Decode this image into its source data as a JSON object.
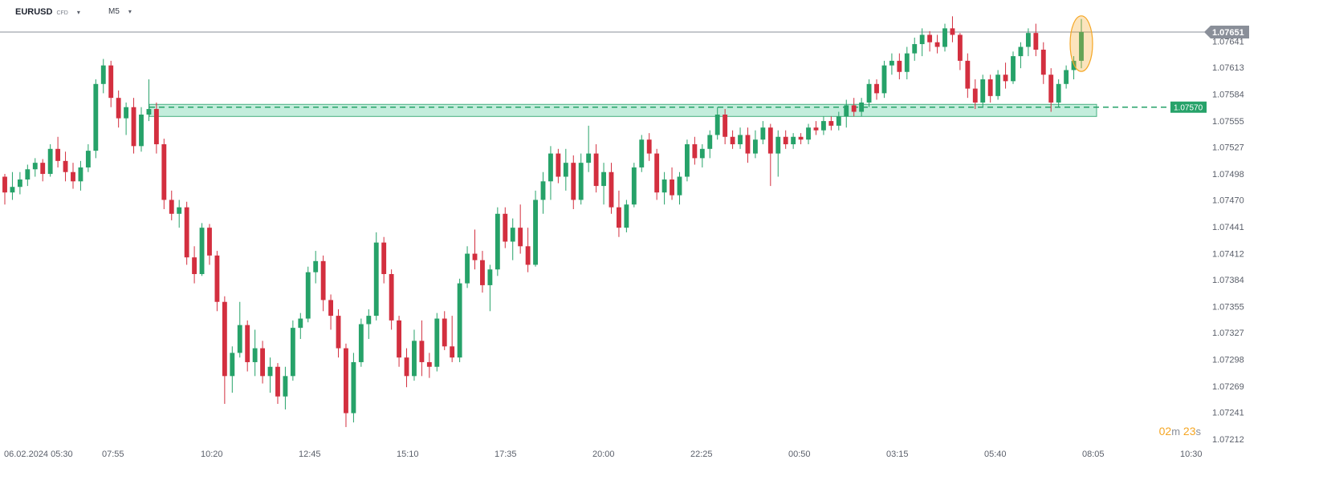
{
  "toolbar": {
    "symbol": "EURUSD",
    "instrument_type": "CFD",
    "timeframe": "M5"
  },
  "countdown": {
    "minutes": "02",
    "minutes_unit": "m",
    "seconds": "23",
    "seconds_unit": "s"
  },
  "colors": {
    "bull": "#26a269",
    "bear": "#d32f3f",
    "support_zone_fill": "#b9ead7",
    "support_zone_stroke": "#26a269",
    "price_line": "#8a8f99",
    "highlight": "#f5a623"
  },
  "chart_data": {
    "type": "candlestick",
    "instrument": "EURUSD",
    "timeframe": "M5",
    "ylim": [
      1.07203,
      1.07672
    ],
    "y_ticks": [
      "1.07641",
      "1.07613",
      "1.07584",
      "1.07555",
      "1.07527",
      "1.07498",
      "1.07470",
      "1.07441",
      "1.07412",
      "1.07384",
      "1.07355",
      "1.07327",
      "1.07298",
      "1.07269",
      "1.07241",
      "1.07212"
    ],
    "x_ticks": [
      "06.02.2024  05:30",
      "07:55",
      "10:20",
      "12:45",
      "15:10",
      "17:35",
      "20:00",
      "22:25",
      "00:50",
      "03:15",
      "05:40",
      "08:05",
      "10:30"
    ],
    "current_price": "1.07651",
    "support_level": {
      "label": "1.07570",
      "value": 1.0757,
      "zone": [
        1.0756,
        1.07573
      ]
    },
    "highlight_last_candle": true,
    "candles": [
      [
        1.07495,
        1.07498,
        1.07465,
        1.07478
      ],
      [
        1.07478,
        1.075,
        1.0747,
        1.07484
      ],
      [
        1.07484,
        1.075,
        1.07476,
        1.07492
      ],
      [
        1.07492,
        1.07508,
        1.07485,
        1.07503
      ],
      [
        1.07503,
        1.07515,
        1.07495,
        1.0751
      ],
      [
        1.0751,
        1.07514,
        1.0749,
        1.07498
      ],
      [
        1.07498,
        1.0753,
        1.07495,
        1.07525
      ],
      [
        1.07525,
        1.07538,
        1.07505,
        1.07512
      ],
      [
        1.07512,
        1.07522,
        1.0749,
        1.075
      ],
      [
        1.075,
        1.0751,
        1.07482,
        1.0749
      ],
      [
        1.0749,
        1.07512,
        1.0748,
        1.07505
      ],
      [
        1.07505,
        1.0753,
        1.075,
        1.07523
      ],
      [
        1.07523,
        1.076,
        1.07515,
        1.07595
      ],
      [
        1.07595,
        1.07622,
        1.07585,
        1.07615
      ],
      [
        1.07615,
        1.0762,
        1.0757,
        1.0758
      ],
      [
        1.0758,
        1.07588,
        1.07548,
        1.07558
      ],
      [
        1.07558,
        1.07575,
        1.0754,
        1.0757
      ],
      [
        1.0757,
        1.0758,
        1.0752,
        1.07528
      ],
      [
        1.07528,
        1.0757,
        1.07522,
        1.07562
      ],
      [
        1.07562,
        1.076,
        1.07555,
        1.07568
      ],
      [
        1.07568,
        1.07575,
        1.0752,
        1.0753
      ],
      [
        1.0753,
        1.07536,
        1.0746,
        1.0747
      ],
      [
        1.0747,
        1.0748,
        1.07448,
        1.07455
      ],
      [
        1.07455,
        1.0747,
        1.0744,
        1.07462
      ],
      [
        1.07462,
        1.07468,
        1.074,
        1.07408
      ],
      [
        1.07408,
        1.0742,
        1.0738,
        1.0739
      ],
      [
        1.0739,
        1.07445,
        1.07388,
        1.0744
      ],
      [
        1.0744,
        1.07444,
        1.074,
        1.0741
      ],
      [
        1.0741,
        1.07415,
        1.0735,
        1.0736
      ],
      [
        1.0736,
        1.07366,
        1.0725,
        1.0728
      ],
      [
        1.0728,
        1.07312,
        1.07262,
        1.07305
      ],
      [
        1.07305,
        1.0736,
        1.073,
        1.07335
      ],
      [
        1.07335,
        1.0734,
        1.07285,
        1.07295
      ],
      [
        1.07295,
        1.0733,
        1.0728,
        1.0731
      ],
      [
        1.0731,
        1.07318,
        1.07272,
        1.0728
      ],
      [
        1.0728,
        1.073,
        1.07262,
        1.0729
      ],
      [
        1.0729,
        1.07294,
        1.0725,
        1.07258
      ],
      [
        1.07258,
        1.0729,
        1.07244,
        1.0728
      ],
      [
        1.0728,
        1.0734,
        1.07275,
        1.07332
      ],
      [
        1.07332,
        1.07348,
        1.0732,
        1.07342
      ],
      [
        1.07342,
        1.07398,
        1.07338,
        1.07392
      ],
      [
        1.07392,
        1.07415,
        1.0738,
        1.07404
      ],
      [
        1.07404,
        1.0741,
        1.0735,
        1.07362
      ],
      [
        1.07362,
        1.07368,
        1.0733,
        1.07345
      ],
      [
        1.07345,
        1.07352,
        1.073,
        1.0731
      ],
      [
        1.0731,
        1.07315,
        1.07225,
        1.0724
      ],
      [
        1.0724,
        1.07305,
        1.0723,
        1.07295
      ],
      [
        1.07295,
        1.07342,
        1.0729,
        1.07336
      ],
      [
        1.07336,
        1.07352,
        1.0732,
        1.07345
      ],
      [
        1.07345,
        1.07435,
        1.0734,
        1.07424
      ],
      [
        1.07424,
        1.0743,
        1.0738,
        1.0739
      ],
      [
        1.0739,
        1.07395,
        1.0733,
        1.0734
      ],
      [
        1.0734,
        1.07345,
        1.0729,
        1.073
      ],
      [
        1.073,
        1.0731,
        1.07268,
        1.0728
      ],
      [
        1.0728,
        1.0733,
        1.07275,
        1.07318
      ],
      [
        1.07318,
        1.0734,
        1.0728,
        1.07295
      ],
      [
        1.07295,
        1.07305,
        1.07278,
        1.0729
      ],
      [
        1.0729,
        1.07348,
        1.07285,
        1.07342
      ],
      [
        1.07342,
        1.0735,
        1.07308,
        1.07312
      ],
      [
        1.07312,
        1.07345,
        1.07295,
        1.073
      ],
      [
        1.073,
        1.07385,
        1.07295,
        1.0738
      ],
      [
        1.0738,
        1.0742,
        1.07375,
        1.07412
      ],
      [
        1.07412,
        1.07438,
        1.07395,
        1.07405
      ],
      [
        1.07405,
        1.07415,
        1.0737,
        1.07378
      ],
      [
        1.07378,
        1.074,
        1.0735,
        1.07395
      ],
      [
        1.07395,
        1.07462,
        1.07388,
        1.07455
      ],
      [
        1.07455,
        1.07462,
        1.07418,
        1.07425
      ],
      [
        1.07425,
        1.0745,
        1.07405,
        1.0744
      ],
      [
        1.0744,
        1.07465,
        1.07412,
        1.0742
      ],
      [
        1.0742,
        1.0744,
        1.07392,
        1.074
      ],
      [
        1.074,
        1.0748,
        1.07398,
        1.0747
      ],
      [
        1.0747,
        1.075,
        1.07455,
        1.0749
      ],
      [
        1.0749,
        1.07528,
        1.0747,
        1.0752
      ],
      [
        1.0752,
        1.07525,
        1.07488,
        1.07495
      ],
      [
        1.07495,
        1.07525,
        1.0748,
        1.0751
      ],
      [
        1.0751,
        1.07518,
        1.0746,
        1.0747
      ],
      [
        1.0747,
        1.0752,
        1.07465,
        1.0751
      ],
      [
        1.0751,
        1.0755,
        1.075,
        1.0752
      ],
      [
        1.0752,
        1.0753,
        1.07478,
        1.07485
      ],
      [
        1.07485,
        1.0751,
        1.07465,
        1.075
      ],
      [
        1.075,
        1.0751,
        1.07455,
        1.07462
      ],
      [
        1.07462,
        1.0748,
        1.0743,
        1.0744
      ],
      [
        1.0744,
        1.0747,
        1.07435,
        1.07465
      ],
      [
        1.07465,
        1.0751,
        1.07462,
        1.07505
      ],
      [
        1.07505,
        1.0754,
        1.075,
        1.07535
      ],
      [
        1.07535,
        1.07542,
        1.07512,
        1.0752
      ],
      [
        1.0752,
        1.07525,
        1.0747,
        1.07478
      ],
      [
        1.07478,
        1.075,
        1.07465,
        1.07492
      ],
      [
        1.07492,
        1.07505,
        1.0747,
        1.07475
      ],
      [
        1.07475,
        1.075,
        1.07465,
        1.07495
      ],
      [
        1.07495,
        1.07535,
        1.0749,
        1.0753
      ],
      [
        1.0753,
        1.07538,
        1.07508,
        1.07515
      ],
      [
        1.07515,
        1.0753,
        1.07505,
        1.07525
      ],
      [
        1.07525,
        1.07545,
        1.07515,
        1.0754
      ],
      [
        1.0754,
        1.0757,
        1.07535,
        1.07562
      ],
      [
        1.07562,
        1.07568,
        1.0753,
        1.07538
      ],
      [
        1.07538,
        1.07545,
        1.07525,
        1.0753
      ],
      [
        1.0753,
        1.07548,
        1.07525,
        1.0754
      ],
      [
        1.0754,
        1.07548,
        1.0751,
        1.0752
      ],
      [
        1.0752,
        1.07545,
        1.07515,
        1.07535
      ],
      [
        1.07535,
        1.07555,
        1.0753,
        1.07548
      ],
      [
        1.07548,
        1.07552,
        1.07485,
        1.0752
      ],
      [
        1.0752,
        1.07545,
        1.07495,
        1.07538
      ],
      [
        1.07538,
        1.07545,
        1.07525,
        1.0753
      ],
      [
        1.0753,
        1.07542,
        1.07525,
        1.07538
      ],
      [
        1.07538,
        1.07542,
        1.0753,
        1.07535
      ],
      [
        1.07535,
        1.07552,
        1.0753,
        1.07548
      ],
      [
        1.07548,
        1.07555,
        1.0754,
        1.07545
      ],
      [
        1.07545,
        1.0756,
        1.0754,
        1.07555
      ],
      [
        1.07555,
        1.0756,
        1.07545,
        1.0755
      ],
      [
        1.0755,
        1.07565,
        1.07545,
        1.0756
      ],
      [
        1.0756,
        1.07578,
        1.07548,
        1.07572
      ],
      [
        1.07572,
        1.0758,
        1.0756,
        1.07565
      ],
      [
        1.07565,
        1.0758,
        1.0756,
        1.07575
      ],
      [
        1.07575,
        1.076,
        1.0757,
        1.07595
      ],
      [
        1.07595,
        1.076,
        1.07578,
        1.07585
      ],
      [
        1.07585,
        1.0762,
        1.0758,
        1.07615
      ],
      [
        1.07615,
        1.07628,
        1.07605,
        1.0762
      ],
      [
        1.0762,
        1.07628,
        1.076,
        1.07608
      ],
      [
        1.07608,
        1.07635,
        1.076,
        1.07628
      ],
      [
        1.07628,
        1.07645,
        1.0762,
        1.07638
      ],
      [
        1.07638,
        1.07655,
        1.07625,
        1.07648
      ],
      [
        1.07648,
        1.07652,
        1.0763,
        1.0764
      ],
      [
        1.0764,
        1.07648,
        1.07628,
        1.07635
      ],
      [
        1.07635,
        1.0766,
        1.0763,
        1.07655
      ],
      [
        1.07655,
        1.07668,
        1.0764,
        1.07648
      ],
      [
        1.07648,
        1.0765,
        1.0761,
        1.0762
      ],
      [
        1.0762,
        1.07628,
        1.0758,
        1.0759
      ],
      [
        1.0759,
        1.076,
        1.07568,
        1.07575
      ],
      [
        1.07575,
        1.07605,
        1.0757,
        1.076
      ],
      [
        1.076,
        1.07605,
        1.07575,
        1.07582
      ],
      [
        1.07582,
        1.0761,
        1.07578,
        1.07605
      ],
      [
        1.07605,
        1.07618,
        1.0759,
        1.07598
      ],
      [
        1.07598,
        1.0763,
        1.07595,
        1.07625
      ],
      [
        1.07625,
        1.0764,
        1.07612,
        1.07635
      ],
      [
        1.07635,
        1.07655,
        1.07625,
        1.0765
      ],
      [
        1.0765,
        1.0766,
        1.07625,
        1.07632
      ],
      [
        1.07632,
        1.0764,
        1.07595,
        1.07605
      ],
      [
        1.07605,
        1.07612,
        1.07565,
        1.07575
      ],
      [
        1.07575,
        1.076,
        1.0757,
        1.07595
      ],
      [
        1.07595,
        1.07615,
        1.0759,
        1.0761
      ],
      [
        1.0761,
        1.07625,
        1.076,
        1.0762
      ],
      [
        1.0762,
        1.07665,
        1.07612,
        1.07651
      ]
    ]
  }
}
